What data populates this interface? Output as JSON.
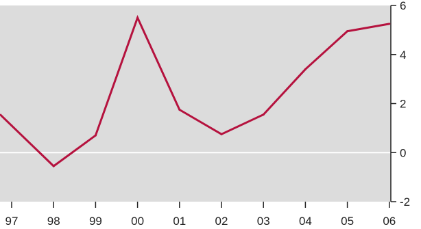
{
  "chart_data": {
    "type": "line",
    "title": "",
    "xlabel": "",
    "ylabel": "",
    "categories": [
      "97",
      "98",
      "99",
      "00",
      "01",
      "02",
      "03",
      "04",
      "05",
      "06"
    ],
    "series": [
      {
        "values": [
          1.1,
          -0.55,
          0.7,
          5.5,
          1.75,
          0.75,
          1.55,
          3.4,
          4.95,
          5.25
        ]
      }
    ],
    "ylim": [
      -2,
      6
    ],
    "yticks": [
      -2,
      0,
      2,
      4,
      6
    ],
    "ytick_labels": [
      "-2",
      "0",
      "2",
      "4",
      "6"
    ],
    "y_axis_position": "right",
    "grid": false,
    "zero_line": true,
    "colors": {
      "plot_background": "#dcdcdc",
      "line": "#b5123e",
      "zero_line": "#ffffff",
      "axis": "#222222"
    }
  }
}
